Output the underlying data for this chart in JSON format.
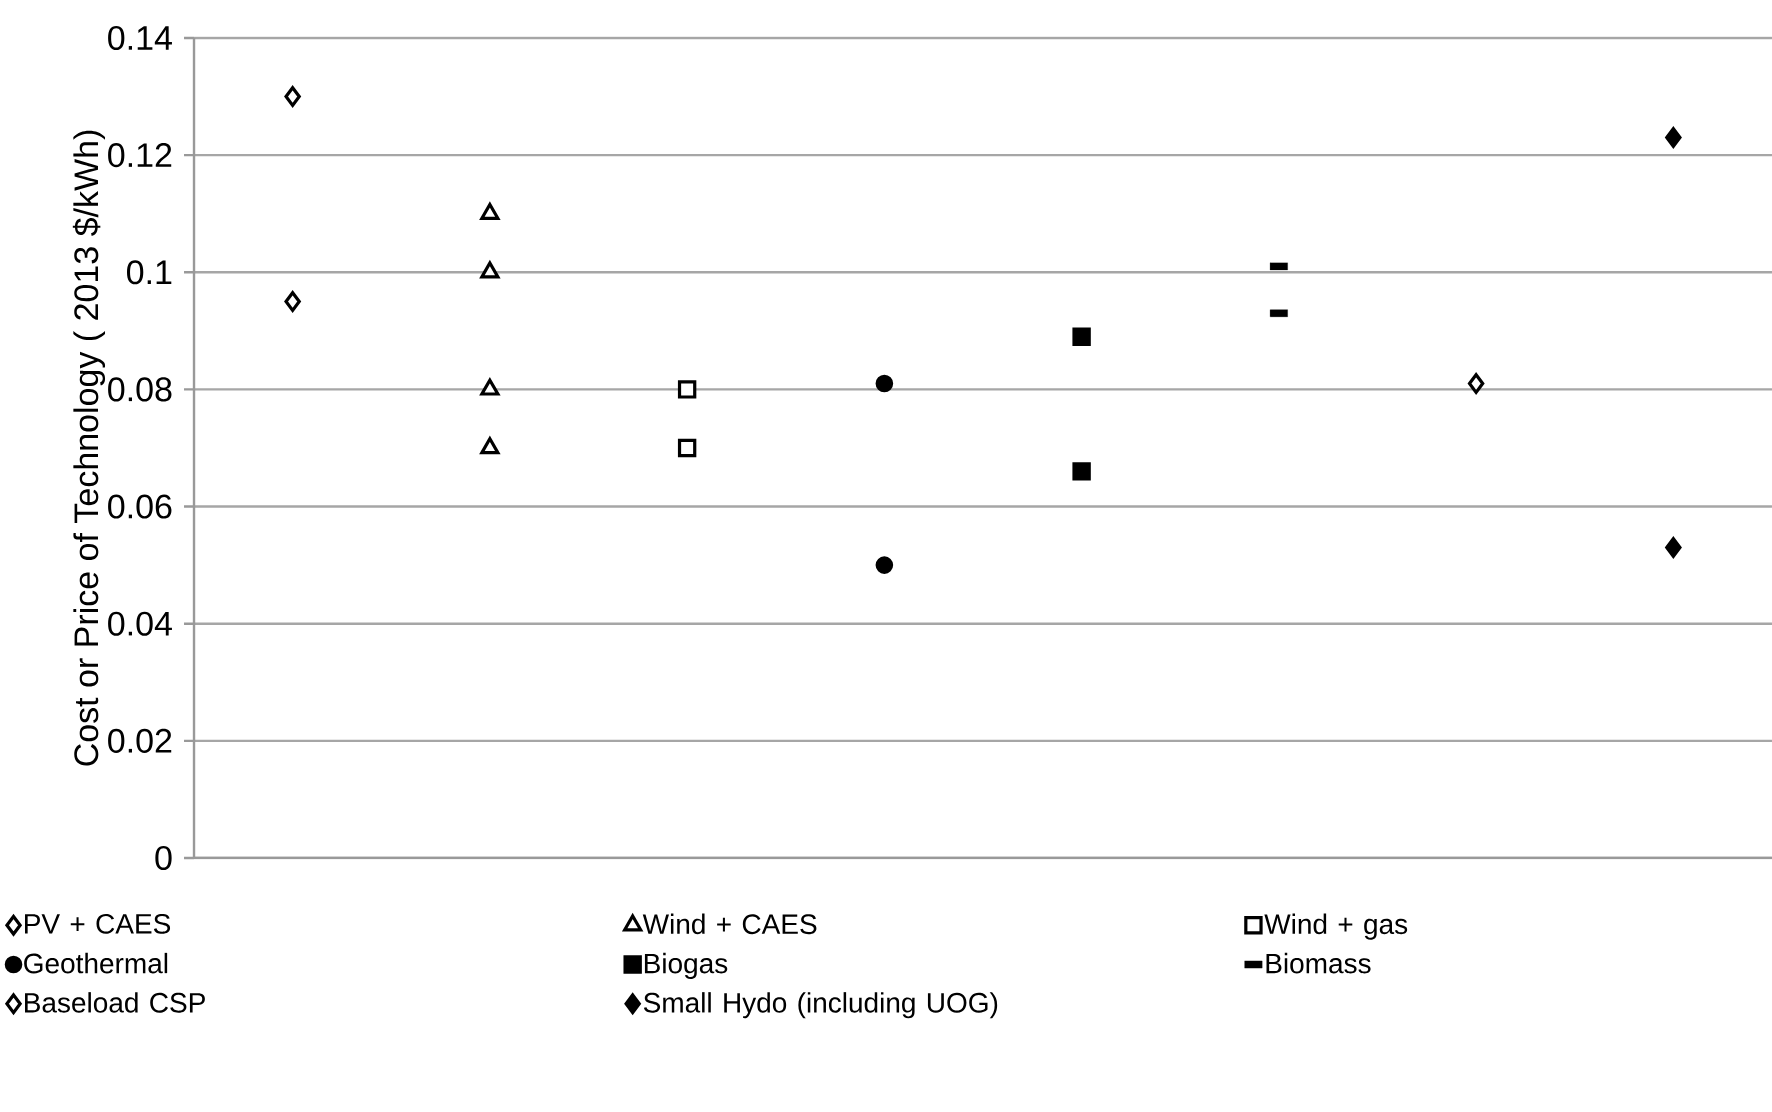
{
  "chart_data": {
    "type": "scatter",
    "ylabel": "Cost or Price of Technology ( 2013 $/kWh)",
    "categories": [
      null,
      null,
      null,
      null,
      null,
      null,
      null,
      null
    ],
    "ylim": [
      0,
      0.14
    ],
    "yticks": [
      0,
      0.02,
      0.04,
      0.06,
      0.08,
      0.1,
      0.12,
      0.14
    ],
    "grid": "y",
    "legend": "bottom",
    "series": [
      {
        "name": "PV + CAES",
        "color": "#ffffff",
        "marker": "diamond",
        "values": [
          0.13,
          null,
          null,
          null,
          null,
          null,
          null,
          null
        ]
      },
      {
        "color": "#ffffff",
        "marker": "diamond",
        "values": [
          0.095,
          null,
          null,
          null,
          null,
          null,
          null,
          null
        ]
      },
      {
        "name": "Wind + CAES",
        "color": "#ffffff",
        "marker": "triangle",
        "values": [
          null,
          0.11,
          null,
          null,
          null,
          null,
          null,
          null
        ]
      },
      {
        "color": "#ffffff",
        "marker": "triangle",
        "values": [
          null,
          0.1,
          null,
          null,
          null,
          null,
          null,
          null
        ]
      },
      {
        "color": "#ffffff",
        "marker": "triangle",
        "values": [
          null,
          0.08,
          null,
          null,
          null,
          null,
          null,
          null
        ]
      },
      {
        "color": "#ffffff",
        "marker": "triangle",
        "values": [
          null,
          0.07,
          null,
          null,
          null,
          null,
          null,
          null
        ]
      },
      {
        "name": "Wind + gas",
        "color": "#ffffff",
        "marker": "square",
        "values": [
          null,
          null,
          0.08,
          null,
          null,
          null,
          null,
          null
        ]
      },
      {
        "color": "#ffffff",
        "marker": "square",
        "values": [
          null,
          null,
          0.07,
          null,
          null,
          null,
          null,
          null
        ]
      },
      {
        "name": "Geothermal",
        "color": "#000000",
        "marker": "circle",
        "values": [
          null,
          null,
          null,
          0.081,
          null,
          null,
          null,
          null
        ]
      },
      {
        "color": "#000000",
        "marker": "circle",
        "values": [
          null,
          null,
          null,
          0.05,
          null,
          null,
          null,
          null
        ]
      },
      {
        "name": "Biogas",
        "color": "#000000",
        "marker": "square",
        "values": [
          null,
          null,
          null,
          null,
          0.089,
          null,
          null,
          null
        ]
      },
      {
        "color": "#000000",
        "marker": "square",
        "values": [
          null,
          null,
          null,
          null,
          0.066,
          null,
          null,
          null
        ]
      },
      {
        "name": "Biomass",
        "color": "#000000",
        "values": [
          null,
          null,
          null,
          null,
          null,
          0.101,
          null,
          null
        ]
      },
      {
        "color": "#000000",
        "values": [
          null,
          null,
          null,
          null,
          null,
          0.093,
          null,
          null
        ]
      },
      {
        "name": "Baseload CSP",
        "color": "#ffffff",
        "marker": "diamond",
        "values": [
          null,
          null,
          null,
          null,
          null,
          null,
          0.081,
          null
        ]
      },
      {
        "name": "Small Hydo (including UOG)",
        "color": "#000000",
        "marker": "diamond",
        "values": [
          null,
          null,
          null,
          null,
          null,
          null,
          null,
          0.123
        ]
      },
      {
        "color": "#000000",
        "marker": "diamond",
        "values": [
          null,
          null,
          null,
          null,
          null,
          null,
          null,
          0.053
        ]
      }
    ]
  }
}
